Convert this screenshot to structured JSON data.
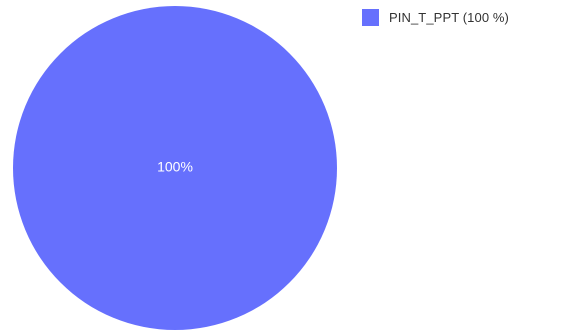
{
  "chart_data": {
    "type": "pie",
    "slices": [
      {
        "name": "PIN_T_PPT",
        "value": 100,
        "percent_label": "100%",
        "legend_label": "PIN_T_PPT (100 %)",
        "color": "#6670fd"
      }
    ],
    "legend_position": "top-right"
  }
}
